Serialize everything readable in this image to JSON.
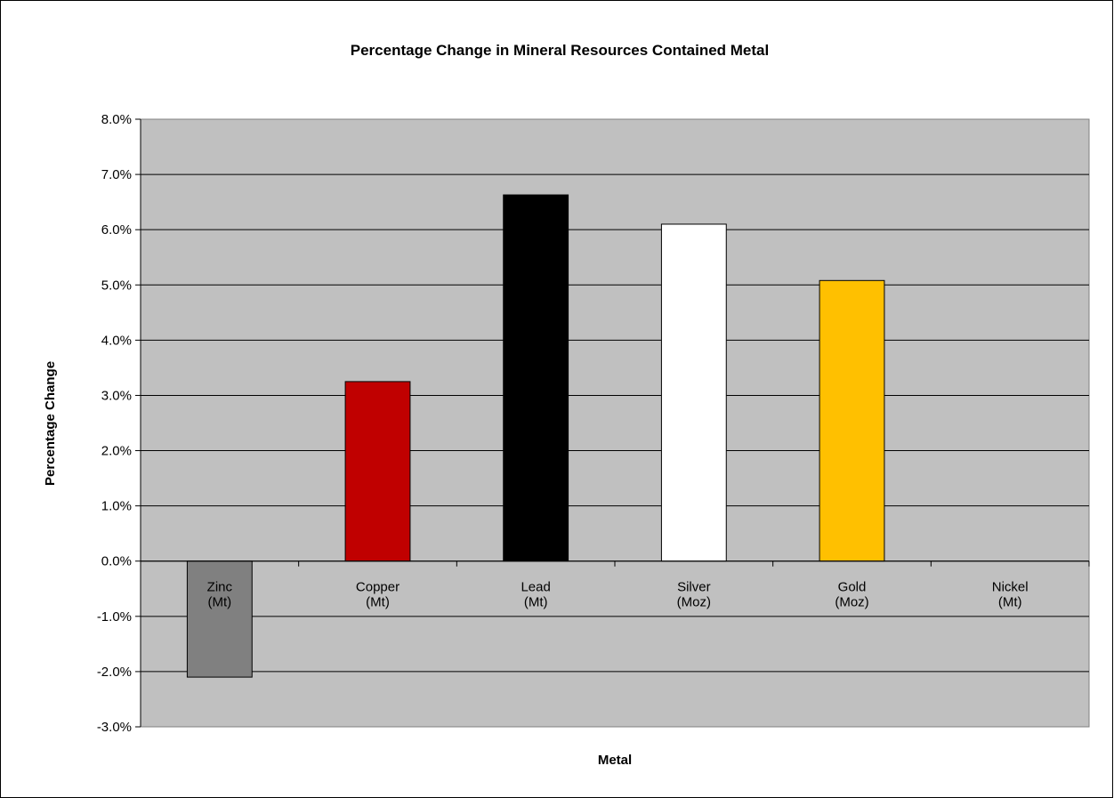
{
  "chart_data": {
    "type": "bar",
    "title": "Percentage Change in Mineral Resources Contained Metal",
    "xlabel": "Metal",
    "ylabel": "Percentage  Change",
    "categories": [
      [
        "Zinc",
        "(Mt)"
      ],
      [
        "Copper",
        "(Mt)"
      ],
      [
        "Lead",
        "(Mt)"
      ],
      [
        "Silver",
        "(Moz)"
      ],
      [
        "Gold",
        "(Moz)"
      ],
      [
        "Nickel",
        "(Mt)"
      ]
    ],
    "values": [
      -2.1,
      3.25,
      6.63,
      6.1,
      5.08,
      0.0
    ],
    "bar_colors": [
      "#808080",
      "#c00000",
      "#000000",
      "#ffffff",
      "#ffc000",
      "#ffffff"
    ],
    "ylim": [
      -3.0,
      8.0
    ],
    "y_ticks": [
      -3.0,
      -2.0,
      -1.0,
      0.0,
      1.0,
      2.0,
      3.0,
      4.0,
      5.0,
      6.0,
      7.0,
      8.0
    ],
    "y_tick_labels": [
      "-3.0%",
      "-2.0%",
      "-1.0%",
      "0.0%",
      "1.0%",
      "2.0%",
      "3.0%",
      "4.0%",
      "5.0%",
      "6.0%",
      "7.0%",
      "8.0%"
    ],
    "plot_background": "#c0c0c0",
    "grid": true,
    "legend": false
  }
}
